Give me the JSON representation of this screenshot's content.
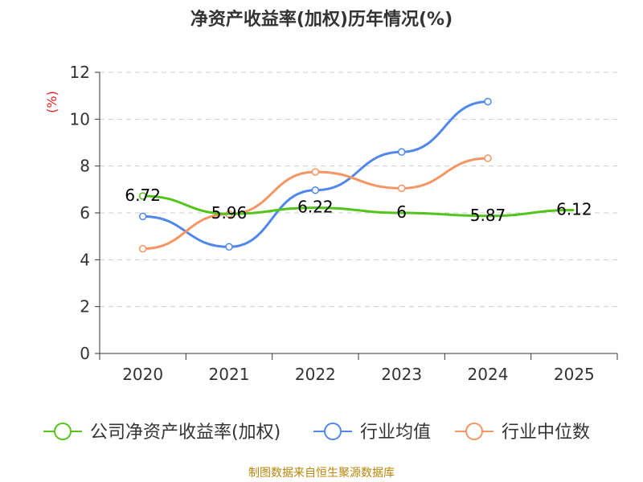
{
  "title": "净资产收益率(加权)历年情况(%)",
  "source": "制图数据来自恒生聚源数据库",
  "colors": {
    "company": "#52c41a",
    "industry_avg": "#5087ec",
    "industry_median": "#f59563",
    "unit_label": "#e02020",
    "axis": "#333333",
    "grid": "#cccccc"
  },
  "chart_data": {
    "type": "line",
    "title": "净资产收益率(加权)历年情况(%)",
    "ylabel": "(%)",
    "xlabel": "",
    "ylim": [
      0,
      12
    ],
    "yticks": [
      0,
      2,
      4,
      6,
      8,
      10,
      12
    ],
    "categories": [
      "2020",
      "2021",
      "2022",
      "2023",
      "2024",
      "2025"
    ],
    "series": [
      {
        "name": "公司净资产收益率(加权)",
        "color_key": "company",
        "values": [
          6.72,
          5.96,
          6.22,
          6.0,
          5.87,
          6.12
        ],
        "labels": [
          "6.72",
          "5.96",
          "6.22",
          "6",
          "5.87",
          "6.12"
        ],
        "show_labels": true,
        "show_markers": [
          true,
          false,
          false,
          false,
          false,
          false
        ]
      },
      {
        "name": "行业均值",
        "color_key": "industry_avg",
        "values": [
          5.85,
          4.55,
          6.97,
          8.6,
          10.75,
          null
        ],
        "show_labels": false,
        "show_markers": [
          true,
          true,
          true,
          true,
          true,
          false
        ]
      },
      {
        "name": "行业中位数",
        "color_key": "industry_median",
        "values": [
          4.47,
          5.95,
          7.75,
          7.05,
          8.33,
          null
        ],
        "show_labels": false,
        "show_markers": [
          true,
          true,
          true,
          true,
          true,
          false
        ]
      }
    ],
    "legend_position": "bottom",
    "grid": true
  }
}
